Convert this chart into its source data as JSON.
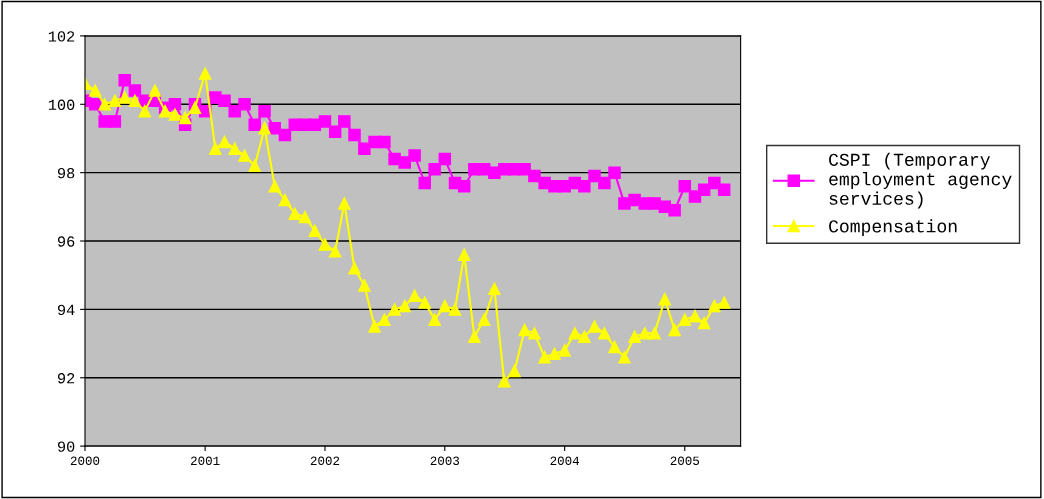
{
  "chart_data": {
    "type": "line",
    "x": [
      "2000-01",
      "2000-02",
      "2000-03",
      "2000-04",
      "2000-05",
      "2000-06",
      "2000-07",
      "2000-08",
      "2000-09",
      "2000-10",
      "2000-11",
      "2000-12",
      "2001-01",
      "2001-02",
      "2001-03",
      "2001-04",
      "2001-05",
      "2001-06",
      "2001-07",
      "2001-08",
      "2001-09",
      "2001-10",
      "2001-11",
      "2001-12",
      "2002-01",
      "2002-02",
      "2002-03",
      "2002-04",
      "2002-05",
      "2002-06",
      "2002-07",
      "2002-08",
      "2002-09",
      "2002-10",
      "2002-11",
      "2002-12",
      "2003-01",
      "2003-02",
      "2003-03",
      "2003-04",
      "2003-05",
      "2003-06",
      "2003-07",
      "2003-08",
      "2003-09",
      "2003-10",
      "2003-11",
      "2003-12",
      "2004-01",
      "2004-02",
      "2004-03",
      "2004-04",
      "2004-05",
      "2004-06",
      "2004-07",
      "2004-08",
      "2004-09",
      "2004-10",
      "2004-11",
      "2004-12",
      "2005-01",
      "2005-02",
      "2005-03",
      "2005-04",
      "2005-05"
    ],
    "series": [
      {
        "name": "CSPI (Temporary employment agency services)",
        "color": "#ff00ff",
        "marker": "square",
        "values": [
          100.1,
          100.0,
          99.5,
          99.5,
          100.7,
          100.4,
          100.1,
          100.1,
          99.9,
          100.0,
          99.4,
          100.0,
          99.8,
          100.2,
          100.1,
          99.8,
          100.0,
          99.4,
          99.8,
          99.3,
          99.1,
          99.4,
          99.4,
          99.4,
          99.5,
          99.2,
          99.5,
          99.1,
          98.7,
          98.9,
          98.9,
          98.4,
          98.3,
          98.5,
          97.7,
          98.1,
          98.4,
          97.7,
          97.6,
          98.1,
          98.1,
          98.0,
          98.1,
          98.1,
          98.1,
          97.9,
          97.7,
          97.6,
          97.6,
          97.7,
          97.6,
          97.9,
          97.7,
          98.0,
          97.1,
          97.2,
          97.1,
          97.1,
          97.0,
          96.9,
          97.6,
          97.3,
          97.5,
          97.7,
          97.5
        ]
      },
      {
        "name": "Compensation",
        "color": "#ffff00",
        "marker": "triangle",
        "values": [
          100.6,
          100.4,
          100.0,
          100.1,
          100.2,
          100.1,
          99.8,
          100.4,
          99.8,
          99.7,
          99.6,
          99.9,
          100.9,
          98.7,
          98.9,
          98.7,
          98.5,
          98.2,
          99.3,
          97.6,
          97.2,
          96.8,
          96.7,
          96.3,
          95.9,
          95.7,
          97.1,
          95.2,
          94.7,
          93.5,
          93.7,
          94.0,
          94.1,
          94.4,
          94.2,
          93.7,
          94.1,
          94.0,
          95.6,
          93.2,
          93.7,
          94.6,
          91.9,
          92.2,
          93.4,
          93.3,
          92.6,
          92.7,
          92.8,
          93.3,
          93.2,
          93.5,
          93.3,
          92.9,
          92.6,
          93.2,
          93.3,
          93.3,
          94.3,
          93.4,
          93.7,
          93.8,
          93.6,
          94.1,
          94.2
        ]
      }
    ],
    "xlim": [
      "2000-01-01",
      "2005-06-20"
    ],
    "xticks": [
      {
        "value": "2000-01-01",
        "label": "2000"
      },
      {
        "value": "2001-01-01",
        "label": "2001"
      },
      {
        "value": "2002-01-01",
        "label": "2002"
      },
      {
        "value": "2003-01-01",
        "label": "2003"
      },
      {
        "value": "2004-01-01",
        "label": "2004"
      },
      {
        "value": "2005-01-01",
        "label": "2005"
      }
    ],
    "ylim": [
      90,
      102
    ],
    "yticks": [
      90,
      92,
      94,
      96,
      98,
      100,
      102
    ],
    "grid": "y",
    "legend": "right",
    "line_style": "solid"
  }
}
